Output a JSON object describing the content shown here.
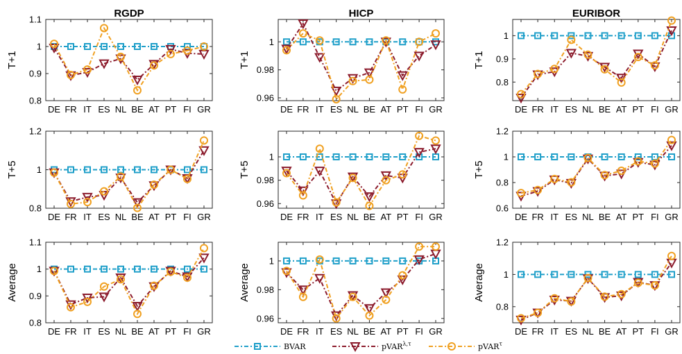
{
  "colors": {
    "BVAR": "#1f9fc9",
    "pVAR_lt": "#8b1a2b",
    "pVAR_t": "#f0a020"
  },
  "legend": [
    {
      "key": "BVAR",
      "label": "BVAR",
      "sup": "",
      "marker": "square"
    },
    {
      "key": "pVAR_lt",
      "label": "pVAR",
      "sup": "λ,τ",
      "marker": "triangle-down"
    },
    {
      "key": "pVAR_t",
      "label": "pVAR",
      "sup": "τ",
      "marker": "circle"
    }
  ],
  "chart_data": [
    {
      "type": "line",
      "title": "RGDP",
      "ylabel": "T+1",
      "ylim": [
        0.8,
        1.1
      ],
      "yticks": [
        "0.8",
        "0.9",
        "1",
        "1.1"
      ],
      "categories": [
        "DE",
        "FR",
        "IT",
        "ES",
        "NL",
        "BE",
        "AT",
        "PT",
        "FI",
        "GR"
      ],
      "series": [
        {
          "name": "BVAR",
          "values": [
            1,
            1,
            1,
            1,
            1,
            1,
            1,
            1,
            1,
            1
          ]
        },
        {
          "name": "pVAR^λ,τ",
          "values": [
            0.995,
            0.893,
            0.905,
            0.937,
            0.955,
            0.877,
            0.935,
            0.99,
            0.975,
            0.972
          ]
        },
        {
          "name": "pVAR^τ",
          "values": [
            1.01,
            0.895,
            0.915,
            1.068,
            0.962,
            0.838,
            0.93,
            0.972,
            0.985,
            1.0
          ]
        }
      ]
    },
    {
      "type": "line",
      "title": "HICP",
      "ylabel": "T+1",
      "ylim": [
        0.958,
        1.016
      ],
      "yticks": [
        "0.96",
        "0.98",
        "1"
      ],
      "categories": [
        "DE",
        "FR",
        "IT",
        "ES",
        "NL",
        "BE",
        "AT",
        "PT",
        "FI",
        "GR"
      ],
      "series": [
        {
          "name": "BVAR",
          "values": [
            1,
            1,
            1,
            1,
            1,
            1,
            1,
            1,
            1,
            1
          ]
        },
        {
          "name": "pVAR^λ,τ",
          "values": [
            0.995,
            1.013,
            0.989,
            0.965,
            0.974,
            0.978,
            1.0,
            0.976,
            0.99,
            0.998
          ]
        },
        {
          "name": "pVAR^τ",
          "values": [
            0.994,
            1.006,
            1.001,
            0.959,
            0.972,
            0.973,
            1.001,
            0.966,
            1.0,
            1.006
          ]
        }
      ]
    },
    {
      "type": "line",
      "title": "EURIBOR",
      "ylabel": "T+1",
      "ylim": [
        0.72,
        1.07
      ],
      "yticks": [
        "0.8",
        "0.9",
        "1"
      ],
      "categories": [
        "DE",
        "FR",
        "IT",
        "ES",
        "NL",
        "BE",
        "AT",
        "PT",
        "FI",
        "GR"
      ],
      "series": [
        {
          "name": "BVAR",
          "values": [
            1,
            1,
            1,
            1,
            1,
            1,
            1,
            1,
            1,
            1
          ]
        },
        {
          "name": "pVAR^λ,τ",
          "values": [
            0.732,
            0.832,
            0.845,
            0.925,
            0.912,
            0.865,
            0.818,
            0.922,
            0.867,
            1.022
          ]
        },
        {
          "name": "pVAR^τ",
          "values": [
            0.748,
            0.835,
            0.857,
            0.982,
            0.918,
            0.855,
            0.798,
            0.908,
            0.872,
            1.065
          ]
        }
      ]
    },
    {
      "type": "line",
      "title": "",
      "ylabel": "T+5",
      "ylim": [
        0.8,
        1.2
      ],
      "yticks": [
        "0.8",
        "1",
        "1.2"
      ],
      "categories": [
        "DE",
        "FR",
        "IT",
        "ES",
        "NL",
        "BE",
        "AT",
        "PT",
        "FI",
        "GR"
      ],
      "series": [
        {
          "name": "BVAR",
          "values": [
            1,
            1,
            1,
            1,
            1,
            1,
            1,
            1,
            1,
            1
          ]
        },
        {
          "name": "pVAR^λ,τ",
          "values": [
            0.985,
            0.835,
            0.858,
            0.868,
            0.958,
            0.83,
            0.918,
            1.0,
            0.955,
            1.1
          ]
        },
        {
          "name": "pVAR^τ",
          "values": [
            0.985,
            0.822,
            0.832,
            0.888,
            0.965,
            0.802,
            0.922,
            1.0,
            0.952,
            1.152
          ]
        }
      ]
    },
    {
      "type": "line",
      "title": "",
      "ylabel": "T+5",
      "ylim": [
        0.956,
        1.022
      ],
      "yticks": [
        "0.96",
        "0.98",
        "1"
      ],
      "categories": [
        "DE",
        "FR",
        "IT",
        "ES",
        "NL",
        "BE",
        "AT",
        "PT",
        "FI",
        "GR"
      ],
      "series": [
        {
          "name": "BVAR",
          "values": [
            1,
            1,
            1,
            1,
            1,
            1,
            1,
            1,
            1,
            1
          ]
        },
        {
          "name": "pVAR^λ,τ",
          "values": [
            0.988,
            0.971,
            0.988,
            0.96,
            0.983,
            0.966,
            0.984,
            0.982,
            1.004,
            1.007
          ]
        },
        {
          "name": "pVAR^τ",
          "values": [
            0.986,
            0.967,
            1.007,
            0.961,
            0.982,
            0.958,
            0.98,
            0.985,
            1.018,
            1.014
          ]
        }
      ]
    },
    {
      "type": "line",
      "title": "",
      "ylabel": "T+5",
      "ylim": [
        0.6,
        1.2
      ],
      "yticks": [
        "0.6",
        "0.8",
        "1",
        "1.2"
      ],
      "categories": [
        "DE",
        "FR",
        "IT",
        "ES",
        "NL",
        "BE",
        "AT",
        "PT",
        "FI",
        "GR"
      ],
      "series": [
        {
          "name": "BVAR",
          "values": [
            1,
            1,
            1,
            1,
            1,
            1,
            1,
            1,
            1,
            1
          ]
        },
        {
          "name": "pVAR^λ,τ",
          "values": [
            0.695,
            0.732,
            0.822,
            0.795,
            0.985,
            0.852,
            0.868,
            0.958,
            0.938,
            1.088
          ]
        },
        {
          "name": "pVAR^τ",
          "values": [
            0.718,
            0.742,
            0.828,
            0.802,
            0.992,
            0.858,
            0.892,
            0.965,
            0.948,
            1.132
          ]
        }
      ]
    },
    {
      "type": "line",
      "title": "",
      "ylabel": "Average",
      "ylim": [
        0.8,
        1.1
      ],
      "yticks": [
        "0.8",
        "0.9",
        "1",
        "1.1"
      ],
      "categories": [
        "DE",
        "FR",
        "IT",
        "ES",
        "NL",
        "BE",
        "AT",
        "PT",
        "FI",
        "GR"
      ],
      "series": [
        {
          "name": "BVAR",
          "values": [
            1,
            1,
            1,
            1,
            1,
            1,
            1,
            1,
            1,
            1
          ]
        },
        {
          "name": "pVAR^λ,τ",
          "values": [
            0.993,
            0.868,
            0.893,
            0.897,
            0.968,
            0.862,
            0.935,
            0.993,
            0.972,
            1.042
          ]
        },
        {
          "name": "pVAR^τ",
          "values": [
            0.993,
            0.858,
            0.878,
            0.935,
            0.962,
            0.833,
            0.938,
            0.99,
            0.968,
            1.078
          ]
        }
      ]
    },
    {
      "type": "line",
      "title": "",
      "ylabel": "Average",
      "ylim": [
        0.957,
        1.013
      ],
      "yticks": [
        "0.96",
        "0.98",
        "1"
      ],
      "categories": [
        "DE",
        "FR",
        "IT",
        "ES",
        "NL",
        "BE",
        "AT",
        "PT",
        "FI",
        "GR"
      ],
      "series": [
        {
          "name": "BVAR",
          "values": [
            1,
            1,
            1,
            1,
            1,
            1,
            1,
            1,
            1,
            1
          ]
        },
        {
          "name": "pVAR^λ,τ",
          "values": [
            0.992,
            0.98,
            0.988,
            0.962,
            0.976,
            0.967,
            0.978,
            0.987,
            1.001,
            1.005
          ]
        },
        {
          "name": "pVAR^τ",
          "values": [
            0.993,
            0.975,
            1.001,
            0.96,
            0.975,
            0.962,
            0.973,
            0.99,
            1.01,
            1.01
          ]
        }
      ]
    },
    {
      "type": "line",
      "title": "",
      "ylabel": "Average",
      "ylim": [
        0.7,
        1.2
      ],
      "yticks": [
        "0.8",
        "1",
        "1.2"
      ],
      "categories": [
        "DE",
        "FR",
        "IT",
        "ES",
        "NL",
        "BE",
        "AT",
        "PT",
        "FI",
        "GR"
      ],
      "series": [
        {
          "name": "BVAR",
          "values": [
            1,
            1,
            1,
            1,
            1,
            1,
            1,
            1,
            1,
            1
          ]
        },
        {
          "name": "pVAR^λ,τ",
          "values": [
            0.718,
            0.762,
            0.842,
            0.835,
            0.975,
            0.858,
            0.868,
            0.952,
            0.932,
            1.072
          ]
        },
        {
          "name": "pVAR^τ",
          "values": [
            0.728,
            0.762,
            0.852,
            0.832,
            0.978,
            0.862,
            0.878,
            0.948,
            0.932,
            1.115
          ]
        }
      ]
    }
  ]
}
